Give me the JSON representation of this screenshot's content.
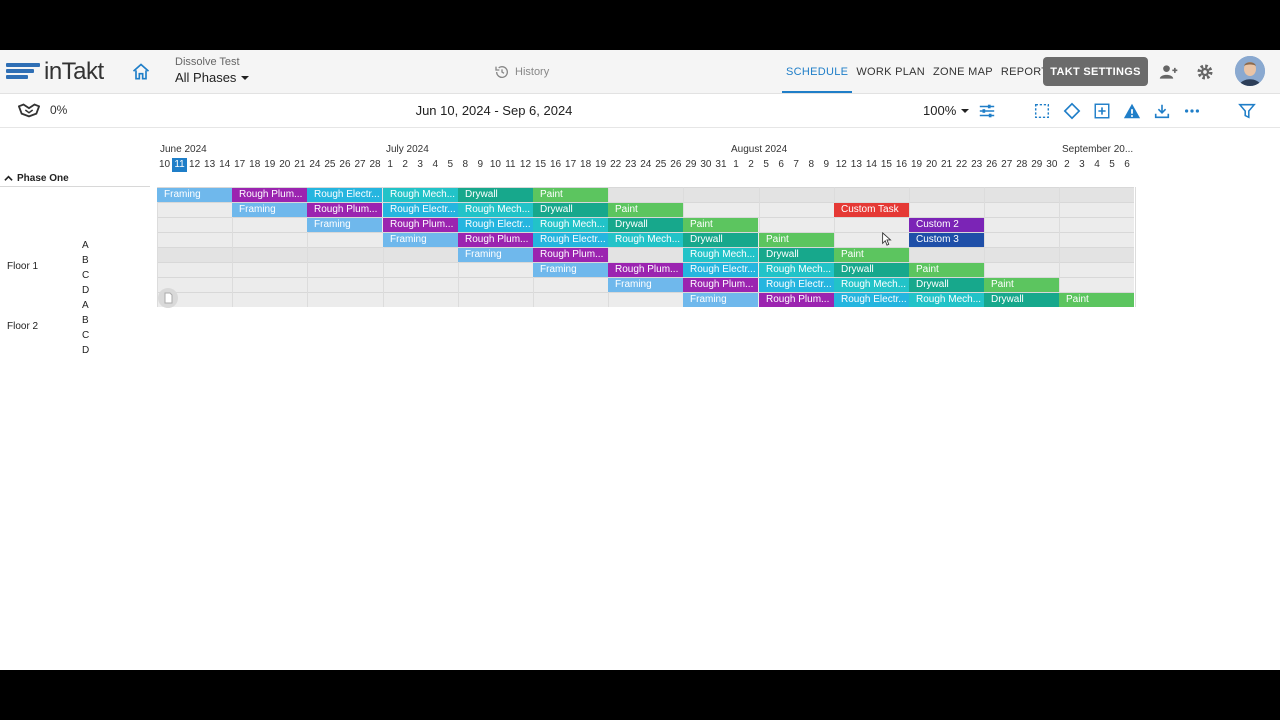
{
  "app": {
    "logo_text": "inTakt",
    "brand_color": "#2f6fb5"
  },
  "project": {
    "name": "Dissolve Test",
    "phase_selector": "All Phases"
  },
  "history_label": "History",
  "nav_tabs": [
    {
      "label": "SCHEDULE",
      "active": true
    },
    {
      "label": "WORK PLAN",
      "active": false
    },
    {
      "label": "ZONE MAP",
      "active": false
    },
    {
      "label": "REPORTS",
      "active": false
    }
  ],
  "takt_settings_label": "TAKT SETTINGS",
  "toolbar": {
    "progress": "0%",
    "date_range": "Jun 10, 2024 - Sep 6, 2024",
    "zoom": "100%"
  },
  "months": [
    "June 2024",
    "July 2024",
    "August 2024",
    "September 20..."
  ],
  "days": [
    "10",
    "11",
    "12",
    "13",
    "14",
    "17",
    "18",
    "19",
    "20",
    "21",
    "24",
    "25",
    "26",
    "27",
    "28",
    "1",
    "2",
    "3",
    "4",
    "5",
    "8",
    "9",
    "10",
    "11",
    "12",
    "15",
    "16",
    "17",
    "18",
    "19",
    "22",
    "23",
    "24",
    "25",
    "26",
    "29",
    "30",
    "31",
    "1",
    "2",
    "5",
    "6",
    "7",
    "8",
    "9",
    "12",
    "13",
    "14",
    "15",
    "16",
    "19",
    "20",
    "21",
    "22",
    "23",
    "26",
    "27",
    "28",
    "29",
    "30",
    "2",
    "3",
    "4",
    "5",
    "6"
  ],
  "today_label": "11",
  "phase": {
    "name": "Phase One"
  },
  "floors": [
    {
      "name": "Floor 1",
      "zones": [
        "A",
        "B",
        "C",
        "D"
      ]
    },
    {
      "name": "Floor 2",
      "zones": [
        "A",
        "B",
        "C",
        "D"
      ]
    }
  ],
  "colors": {
    "framing": "#6fb8ec",
    "plumbing": "#9b24b0",
    "electrical": "#25b5df",
    "mechanical": "#22c3c8",
    "drywall": "#17a88c",
    "paint": "#5cc55f",
    "custom_task": "#e53935",
    "custom_2": "#7b24b6",
    "custom_3": "#1f4fa8"
  },
  "tasks": [
    {
      "row": 0,
      "start_week": 0,
      "weeks": 1,
      "label": "Framing",
      "color": "framing"
    },
    {
      "row": 0,
      "start_week": 1,
      "weeks": 1,
      "label": "Rough Plum...",
      "color": "plumbing"
    },
    {
      "row": 0,
      "start_week": 2,
      "weeks": 1,
      "label": "Rough Electr...",
      "color": "electrical"
    },
    {
      "row": 0,
      "start_week": 3,
      "weeks": 1,
      "label": "Rough Mech...",
      "color": "mechanical"
    },
    {
      "row": 0,
      "start_week": 4,
      "weeks": 1,
      "label": "Drywall",
      "color": "drywall"
    },
    {
      "row": 0,
      "start_week": 5,
      "weeks": 1,
      "label": "Paint",
      "color": "paint"
    },
    {
      "row": 1,
      "start_week": 1,
      "weeks": 1,
      "label": "Framing",
      "color": "framing"
    },
    {
      "row": 1,
      "start_week": 2,
      "weeks": 1,
      "label": "Rough Plum...",
      "color": "plumbing"
    },
    {
      "row": 1,
      "start_week": 3,
      "weeks": 1,
      "label": "Rough Electr...",
      "color": "electrical"
    },
    {
      "row": 1,
      "start_week": 4,
      "weeks": 1,
      "label": "Rough Mech...",
      "color": "mechanical"
    },
    {
      "row": 1,
      "start_week": 5,
      "weeks": 1,
      "label": "Drywall",
      "color": "drywall"
    },
    {
      "row": 1,
      "start_week": 6,
      "weeks": 1,
      "label": "Paint",
      "color": "paint"
    },
    {
      "row": 1,
      "start_week": 9,
      "weeks": 1,
      "label": "Custom Task",
      "color": "custom_task"
    },
    {
      "row": 2,
      "start_week": 2,
      "weeks": 1,
      "label": "Framing",
      "color": "framing"
    },
    {
      "row": 2,
      "start_week": 3,
      "weeks": 1,
      "label": "Rough Plum...",
      "color": "plumbing"
    },
    {
      "row": 2,
      "start_week": 4,
      "weeks": 1,
      "label": "Rough Electr...",
      "color": "electrical"
    },
    {
      "row": 2,
      "start_week": 5,
      "weeks": 1,
      "label": "Rough Mech...",
      "color": "mechanical"
    },
    {
      "row": 2,
      "start_week": 6,
      "weeks": 1,
      "label": "Drywall",
      "color": "drywall"
    },
    {
      "row": 2,
      "start_week": 7,
      "weeks": 1,
      "label": "Paint",
      "color": "paint"
    },
    {
      "row": 2,
      "start_week": 10,
      "weeks": 1,
      "label": "Custom 2",
      "color": "custom_2"
    },
    {
      "row": 3,
      "start_week": 3,
      "weeks": 1,
      "label": "Framing",
      "color": "framing"
    },
    {
      "row": 3,
      "start_week": 4,
      "weeks": 1,
      "label": "Rough Plum...",
      "color": "plumbing"
    },
    {
      "row": 3,
      "start_week": 5,
      "weeks": 1,
      "label": "Rough Electr...",
      "color": "electrical"
    },
    {
      "row": 3,
      "start_week": 6,
      "weeks": 1,
      "label": "Rough Mech...",
      "color": "mechanical"
    },
    {
      "row": 3,
      "start_week": 7,
      "weeks": 1,
      "label": "Drywall",
      "color": "drywall"
    },
    {
      "row": 3,
      "start_week": 8,
      "weeks": 1,
      "label": "Paint",
      "color": "paint"
    },
    {
      "row": 3,
      "start_week": 10,
      "weeks": 1,
      "label": "Custom 3",
      "color": "custom_3"
    },
    {
      "row": 4,
      "start_week": 4,
      "weeks": 1,
      "label": "Framing",
      "color": "framing"
    },
    {
      "row": 4,
      "start_week": 5,
      "weeks": 1,
      "label": "Rough Plum...",
      "color": "plumbing"
    },
    {
      "row": 4,
      "start_week": 7,
      "weeks": 1,
      "label": "Rough Mech...",
      "color": "mechanical"
    },
    {
      "row": 4,
      "start_week": 8,
      "weeks": 1,
      "label": "Drywall",
      "color": "drywall"
    },
    {
      "row": 4,
      "start_week": 9,
      "weeks": 1,
      "label": "Paint",
      "color": "paint"
    },
    {
      "row": 5,
      "start_week": 5,
      "weeks": 1,
      "label": "Framing",
      "color": "framing"
    },
    {
      "row": 5,
      "start_week": 6,
      "weeks": 1,
      "label": "Rough Plum...",
      "color": "plumbing"
    },
    {
      "row": 5,
      "start_week": 7,
      "weeks": 1,
      "label": "Rough Electr...",
      "color": "electrical"
    },
    {
      "row": 5,
      "start_week": 8,
      "weeks": 1,
      "label": "Rough Mech...",
      "color": "mechanical"
    },
    {
      "row": 5,
      "start_week": 9,
      "weeks": 1,
      "label": "Drywall",
      "color": "drywall"
    },
    {
      "row": 5,
      "start_week": 10,
      "weeks": 1,
      "label": "Paint",
      "color": "paint"
    },
    {
      "row": 6,
      "start_week": 6,
      "weeks": 1,
      "label": "Framing",
      "color": "framing"
    },
    {
      "row": 6,
      "start_week": 7,
      "weeks": 1,
      "label": "Rough Plum...",
      "color": "plumbing"
    },
    {
      "row": 6,
      "start_week": 8,
      "weeks": 1,
      "label": "Rough Electr...",
      "color": "electrical"
    },
    {
      "row": 6,
      "start_week": 9,
      "weeks": 1,
      "label": "Rough Mech...",
      "color": "mechanical"
    },
    {
      "row": 6,
      "start_week": 10,
      "weeks": 1,
      "label": "Drywall",
      "color": "drywall"
    },
    {
      "row": 6,
      "start_week": 11,
      "weeks": 1,
      "label": "Paint",
      "color": "paint"
    },
    {
      "row": 7,
      "start_week": 7,
      "weeks": 1,
      "label": "Framing",
      "color": "framing"
    },
    {
      "row": 7,
      "start_week": 8,
      "weeks": 1,
      "label": "Rough Plum...",
      "color": "plumbing"
    },
    {
      "row": 7,
      "start_week": 9,
      "weeks": 1,
      "label": "Rough Electr...",
      "color": "electrical"
    },
    {
      "row": 7,
      "start_week": 10,
      "weeks": 1,
      "label": "Rough Mech...",
      "color": "mechanical"
    },
    {
      "row": 7,
      "start_week": 11,
      "weeks": 1,
      "label": "Drywall",
      "color": "drywall"
    },
    {
      "row": 7,
      "start_week": 12,
      "weeks": 1,
      "label": "Paint",
      "color": "paint"
    }
  ]
}
